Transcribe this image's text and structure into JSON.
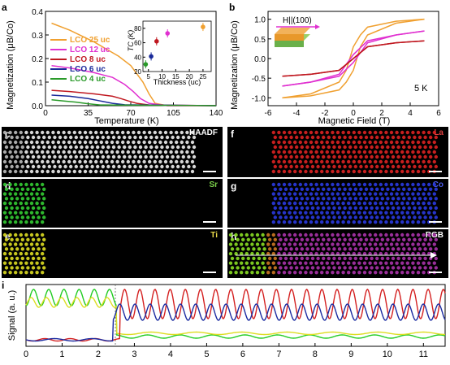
{
  "panels": {
    "a": {
      "label": "a",
      "ylabel": "Magnetization (μB/Co)",
      "xlabel": "Temperature (K)",
      "yticks": [
        "0.0",
        "0.1",
        "0.2",
        "0.3",
        "0.4"
      ],
      "xticks": [
        "0",
        "35",
        "70",
        "105",
        "140"
      ],
      "legend": [
        "LCO 25 uc",
        "LCO 12 uc",
        "LCO 8 uc",
        "LCO 6 uc",
        "LCO 4 uc"
      ],
      "inset": {
        "ylabel": "TC (K)",
        "xlabel": "Thickness (uc)",
        "yticks": [
          "20",
          "40",
          "60",
          "80"
        ],
        "xticks": [
          "5",
          "10",
          "15",
          "20",
          "25"
        ]
      }
    },
    "b": {
      "label": "b",
      "ylabel": "Magnetization (μB/Co)",
      "xlabel": "Magnetic Field (T)",
      "yticks": [
        "-1.0",
        "-0.5",
        "0.0",
        "0.5",
        "1.0"
      ],
      "xticks": [
        "-6",
        "-4",
        "-2",
        "0",
        "2",
        "4",
        "6"
      ],
      "field_label": "H||(100)",
      "temp_label": "5 K"
    },
    "c": {
      "label": "c",
      "tag": "HAADF",
      "tag_color": "#ffffff"
    },
    "d": {
      "label": "d",
      "tag": "Sr",
      "tag_color": "#7ad04a"
    },
    "e": {
      "label": "e",
      "tag": "Ti",
      "tag_color": "#e8d84a"
    },
    "f": {
      "label": "f",
      "tag": "La",
      "tag_color": "#e04040"
    },
    "g": {
      "label": "g",
      "tag": "Co",
      "tag_color": "#4a5ae8"
    },
    "h": {
      "label": "h",
      "tag": "RGB",
      "tag_color": "#ffffff"
    },
    "i": {
      "label": "i",
      "ylabel": "Signal (a. u.)",
      "xticks": [
        "0",
        "1",
        "2",
        "3",
        "4",
        "5",
        "6",
        "7",
        "8",
        "9",
        "10",
        "11"
      ]
    }
  },
  "colors": {
    "lco25": "#f0a030",
    "lco12": "#e030d0",
    "lco8": "#c01820",
    "lco6": "#1a2a9a",
    "lco4": "#2a9a2a",
    "green": "#22cc22",
    "yellow": "#dddd22",
    "red": "#d42020",
    "blue": "#1a2aa0"
  },
  "chart_data": [
    {
      "type": "line",
      "title": "",
      "xlabel": "Temperature (K)",
      "ylabel": "Magnetization (μB/Co)",
      "xlim": [
        0,
        140
      ],
      "ylim": [
        0,
        0.4
      ],
      "series": [
        {
          "name": "LCO 25 uc",
          "x": [
            5,
            20,
            40,
            60,
            70,
            80,
            85,
            90,
            100,
            140
          ],
          "values": [
            0.35,
            0.32,
            0.27,
            0.21,
            0.17,
            0.1,
            0.05,
            0.01,
            0.0,
            0.0
          ]
        },
        {
          "name": "LCO 12 uc",
          "x": [
            5,
            20,
            40,
            55,
            65,
            72,
            78,
            85,
            100,
            140
          ],
          "values": [
            0.17,
            0.16,
            0.14,
            0.12,
            0.09,
            0.06,
            0.03,
            0.01,
            0.0,
            0.0
          ]
        },
        {
          "name": "LCO 8 uc",
          "x": [
            5,
            20,
            40,
            55,
            62,
            68,
            75,
            85,
            140
          ],
          "values": [
            0.065,
            0.06,
            0.05,
            0.04,
            0.03,
            0.02,
            0.01,
            0.003,
            0.0
          ]
        },
        {
          "name": "LCO 6 uc",
          "x": [
            5,
            20,
            35,
            45,
            55,
            65,
            140
          ],
          "values": [
            0.045,
            0.04,
            0.03,
            0.02,
            0.01,
            0.004,
            0.0
          ]
        },
        {
          "name": "LCO 4 uc",
          "x": [
            5,
            15,
            25,
            35,
            45,
            140
          ],
          "values": [
            0.025,
            0.02,
            0.015,
            0.008,
            0.003,
            0.0
          ]
        }
      ]
    },
    {
      "type": "scatter",
      "xlabel": "Thickness (uc)",
      "ylabel": "TC (K)",
      "xlim": [
        3,
        28
      ],
      "ylim": [
        20,
        90
      ],
      "series": [
        {
          "name": "",
          "x": [
            4,
            6,
            8,
            12,
            25
          ],
          "values": [
            30,
            41,
            62,
            73,
            82
          ],
          "colors": [
            "#2a9a2a",
            "#1a2a9a",
            "#c01820",
            "#e030d0",
            "#f0a030"
          ]
        }
      ]
    },
    {
      "type": "line",
      "xlabel": "Magnetic Field (T)",
      "ylabel": "Magnetization (μB/Co)",
      "xlim": [
        -6,
        6
      ],
      "ylim": [
        -1.2,
        1.2
      ],
      "series": [
        {
          "name": "LCO 25 uc",
          "x": [
            -5,
            -3,
            -1,
            -0.5,
            0,
            0.5,
            1,
            3,
            5
          ],
          "values": [
            -1.0,
            -0.9,
            -0.6,
            -0.3,
            0.3,
            0.6,
            0.8,
            0.95,
            1.0
          ]
        },
        {
          "name": "LCO 12 uc",
          "x": [
            -5,
            -3,
            -1,
            0,
            1,
            3,
            5
          ],
          "values": [
            -0.7,
            -0.6,
            -0.4,
            0.1,
            0.45,
            0.6,
            0.7
          ]
        },
        {
          "name": "LCO 8 uc",
          "x": [
            -5,
            -3,
            -1,
            0,
            1,
            3,
            5
          ],
          "values": [
            -0.45,
            -0.4,
            -0.3,
            0.0,
            0.3,
            0.4,
            0.45
          ]
        }
      ]
    },
    {
      "type": "line",
      "xlabel": "",
      "ylabel": "Signal (a. u.)",
      "xlim": [
        0,
        11.6
      ],
      "series": [
        {
          "name": "",
          "color": "green"
        },
        {
          "name": "",
          "color": "yellow"
        },
        {
          "name": "",
          "color": "red"
        },
        {
          "name": "",
          "color": "blue"
        }
      ]
    }
  ]
}
